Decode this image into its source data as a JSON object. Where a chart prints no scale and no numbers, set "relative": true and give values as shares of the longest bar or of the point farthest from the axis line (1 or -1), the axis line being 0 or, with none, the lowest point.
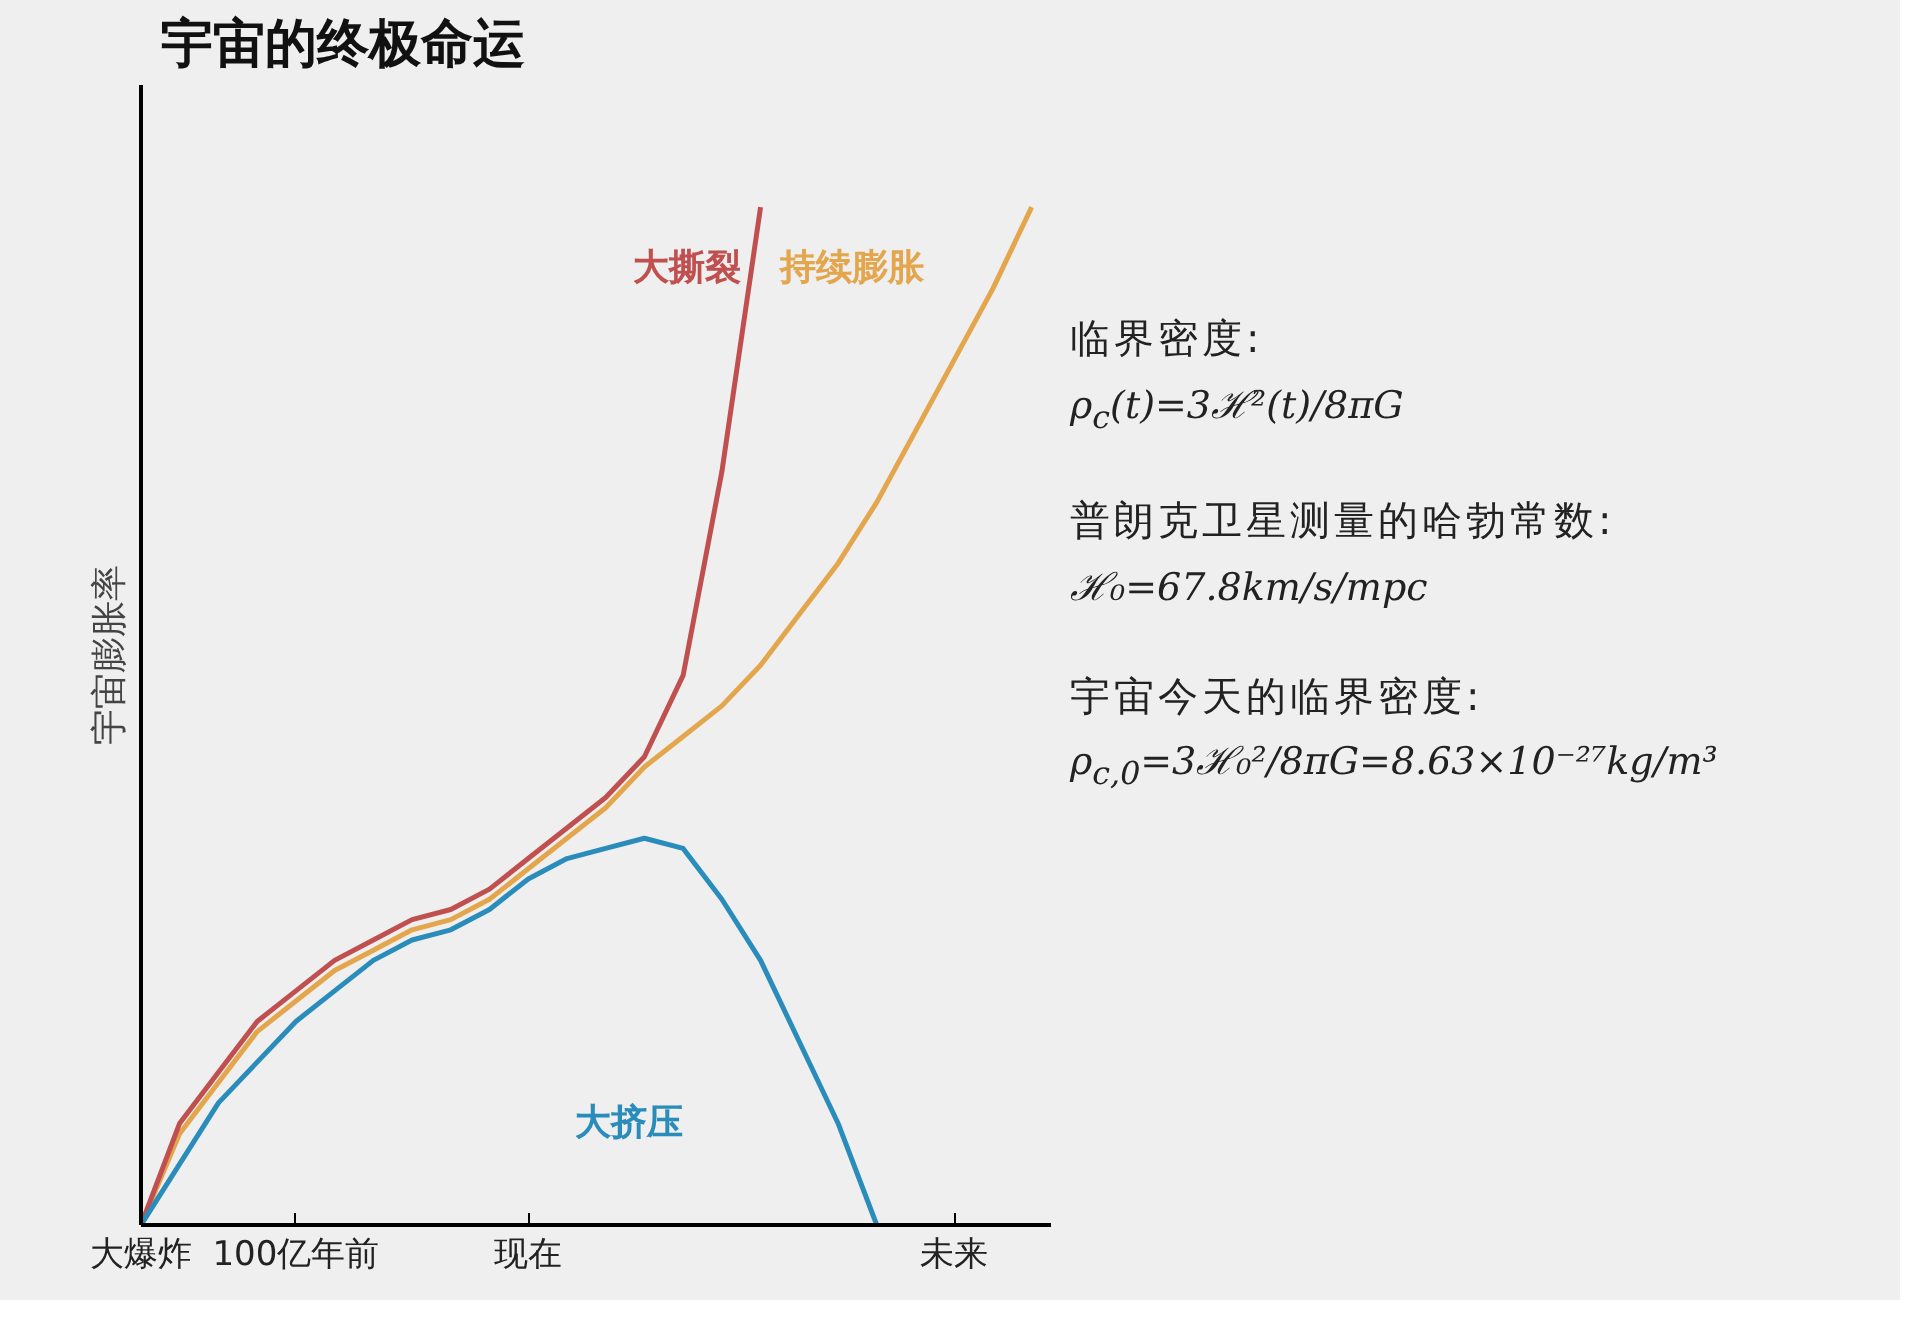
{
  "chart_data": {
    "type": "line",
    "title": "宇宙的终极命运",
    "ylabel": "宇宙膨胀率",
    "relative": true,
    "categories": [
      "大爆炸",
      null,
      null,
      null,
      "100亿年前",
      null,
      null,
      null,
      null,
      null,
      "现在",
      null,
      null,
      null,
      null,
      null,
      null,
      null,
      null,
      null,
      null,
      "未来",
      null,
      null
    ],
    "series": [
      {
        "name": "持续膨胀",
        "color": "#e3a64c",
        "values": [
          0,
          0.09,
          0.14,
          0.19,
          0.22,
          0.25,
          0.27,
          0.29,
          0.3,
          0.32,
          0.35,
          0.38,
          0.41,
          0.45,
          0.48,
          0.51,
          0.55,
          0.6,
          0.65,
          0.71,
          0.78,
          0.85,
          0.92,
          1.0
        ]
      },
      {
        "name": "大撕裂",
        "color": "#c0504f",
        "values": [
          0,
          0.1,
          0.15,
          0.2,
          0.23,
          0.26,
          0.28,
          0.3,
          0.31,
          0.33,
          0.36,
          0.39,
          0.42,
          0.46,
          0.54,
          0.74,
          1.0,
          null,
          null,
          null,
          null,
          null,
          null,
          null
        ]
      },
      {
        "name": "大挤压",
        "color": "#2a8cba",
        "values": [
          0,
          0.06,
          0.12,
          0.16,
          0.2,
          0.23,
          0.26,
          0.28,
          0.29,
          0.31,
          0.34,
          0.36,
          0.37,
          0.38,
          0.37,
          0.32,
          0.26,
          0.18,
          0.1,
          0.0,
          null,
          null,
          null,
          null
        ]
      }
    ],
    "annotations": [
      "临界密度:",
      "ρ$_{c}$(t)=3ℋ²(t)/8πG",
      "普朗克卫星测量的哈勃常数:",
      "ℋ₀=67.8km/s/mpc",
      "宇宙今天的临界密度:",
      "ρ$_{c,0}$=3ℋ₀²/8πG=8.63×10⁻²⁷kg/m³"
    ],
    "legend": false,
    "grid": false,
    "line_style": "solid",
    "marker": "none"
  }
}
